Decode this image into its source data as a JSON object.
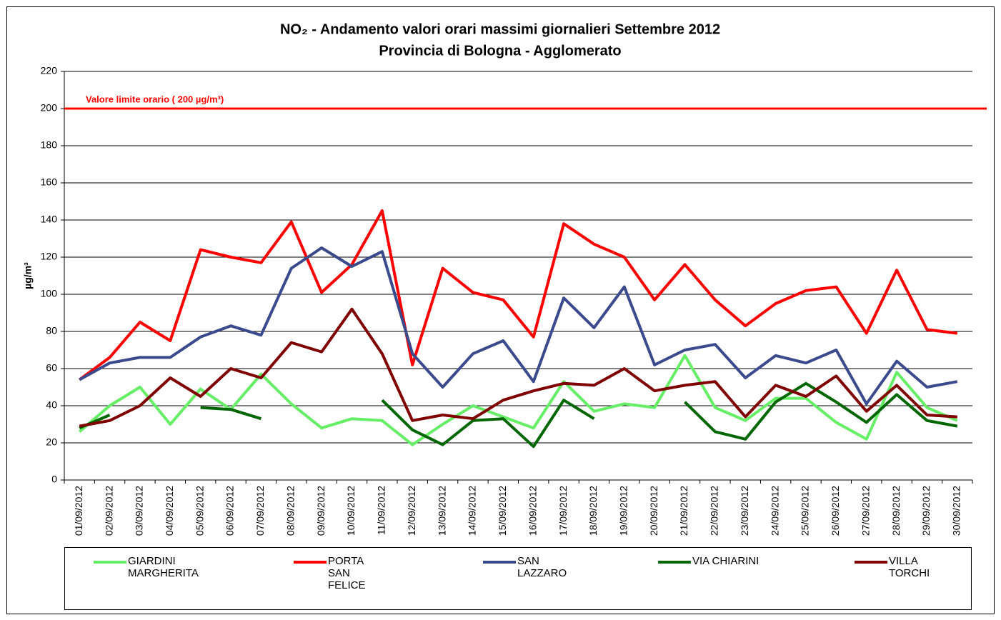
{
  "chart_data": {
    "type": "line",
    "title": "NO₂ - Andamento valori orari massimi giornalieri Settembre 2012",
    "subtitle": "Provincia di Bologna - Agglomerato",
    "y_label": "µg/m³",
    "categories": [
      "01/09/2012",
      "02/09/2012",
      "03/09/2012",
      "04/09/2012",
      "05/09/2012",
      "06/09/2012",
      "07/09/2012",
      "08/09/2012",
      "09/09/2012",
      "10/09/2012",
      "11/09/2012",
      "12/09/2012",
      "13/09/2012",
      "14/09/2012",
      "15/09/2012",
      "16/09/2012",
      "17/09/2012",
      "18/09/2012",
      "19/09/2012",
      "20/09/2012",
      "21/09/2012",
      "22/09/2012",
      "23/09/2012",
      "24/09/2012",
      "25/09/2012",
      "26/09/2012",
      "27/09/2012",
      "28/09/2012",
      "29/09/2012",
      "30/09/2012"
    ],
    "series": [
      {
        "name": "GIARDINI MARGHERITA",
        "color": "#66ee66",
        "values": [
          26,
          40,
          50,
          30,
          49,
          38,
          57,
          41,
          28,
          33,
          32,
          19,
          30,
          40,
          34,
          28,
          53,
          37,
          41,
          39,
          67,
          39,
          32,
          44,
          44,
          31,
          22,
          58,
          39,
          32
        ]
      },
      {
        "name": "PORTA SAN FELICE",
        "color": "#ff0000",
        "values": [
          54,
          66,
          85,
          75,
          124,
          120,
          117,
          139,
          101,
          116,
          145,
          62,
          114,
          101,
          97,
          77,
          138,
          127,
          120,
          97,
          116,
          97,
          83,
          95,
          102,
          104,
          79,
          113,
          81,
          79
        ]
      },
      {
        "name": "SAN LAZZARO",
        "color": "#3b4a8c",
        "values": [
          54,
          63,
          66,
          66,
          77,
          83,
          78,
          114,
          125,
          115,
          123,
          68,
          50,
          68,
          75,
          53,
          98,
          82,
          104,
          62,
          70,
          73,
          55,
          67,
          63,
          70,
          41,
          64,
          50,
          53
        ]
      },
      {
        "name": "VIA CHIARINI",
        "color": "#006600",
        "values": [
          28,
          35,
          null,
          null,
          39,
          38,
          33,
          null,
          null,
          null,
          43,
          27,
          19,
          32,
          33,
          18,
          43,
          33,
          null,
          null,
          42,
          26,
          22,
          42,
          52,
          42,
          31,
          46,
          32,
          29
        ]
      },
      {
        "name": "VILLA TORCHI",
        "color": "#800000",
        "values": [
          29,
          32,
          40,
          55,
          45,
          60,
          55,
          74,
          69,
          92,
          68,
          32,
          35,
          33,
          43,
          48,
          52,
          51,
          60,
          48,
          51,
          53,
          34,
          51,
          45,
          56,
          37,
          51,
          35,
          34
        ]
      }
    ],
    "limit_line": {
      "value": 200,
      "label": "Valore limite orario ( 200 µg/m³)",
      "color": "#ff0000"
    },
    "ylim": [
      0,
      220
    ],
    "yticks": [
      0,
      20,
      40,
      60,
      80,
      100,
      120,
      140,
      160,
      180,
      200,
      220
    ],
    "grid": true,
    "legend": "bottom"
  }
}
